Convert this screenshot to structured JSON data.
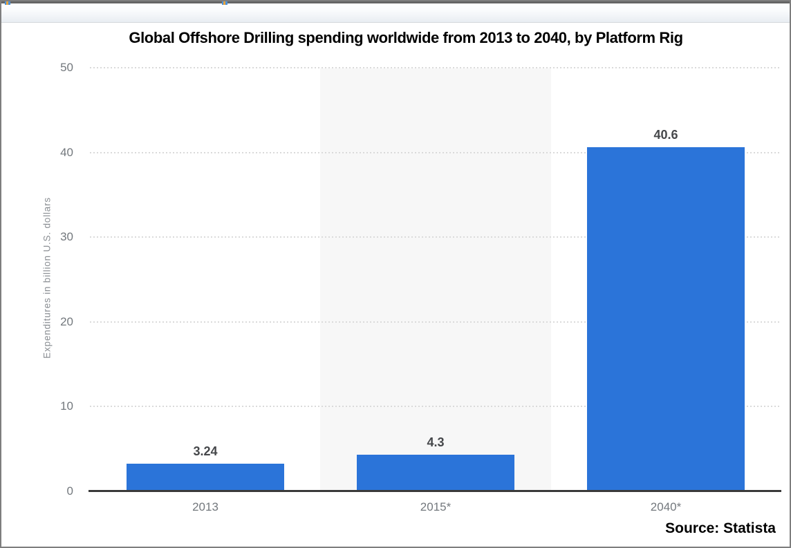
{
  "source": {
    "label": "Source: Statista"
  },
  "chart_data": {
    "type": "bar",
    "title": "Global Offshore Drilling spending worldwide from 2013 to 2040, by Platform Rig",
    "categories": [
      "2013",
      "2015*",
      "2040*"
    ],
    "values": [
      3.24,
      4.3,
      40.6
    ],
    "value_labels": [
      "3.24",
      "4.3",
      "40.6"
    ],
    "xlabel": "",
    "ylabel": "Expenditures in billion U.S. dollars",
    "ylim": [
      0,
      50
    ],
    "yticks": [
      0,
      10,
      20,
      30,
      40,
      50
    ],
    "grid": "horizontal-dotted",
    "legend": "none",
    "highlighted_category_index": 1,
    "source_note": "Source: Statista"
  },
  "colors": {
    "bar": "#2B74D9",
    "highlight_band": "#F7F7F7",
    "gridline": "#DADADA",
    "axis_line": "#3A3A3A",
    "tick_text": "#73787D",
    "category_text": "#73787D",
    "value_text": "#45474A",
    "axis_title_text": "#8A8E93",
    "title_text": "#000000"
  }
}
